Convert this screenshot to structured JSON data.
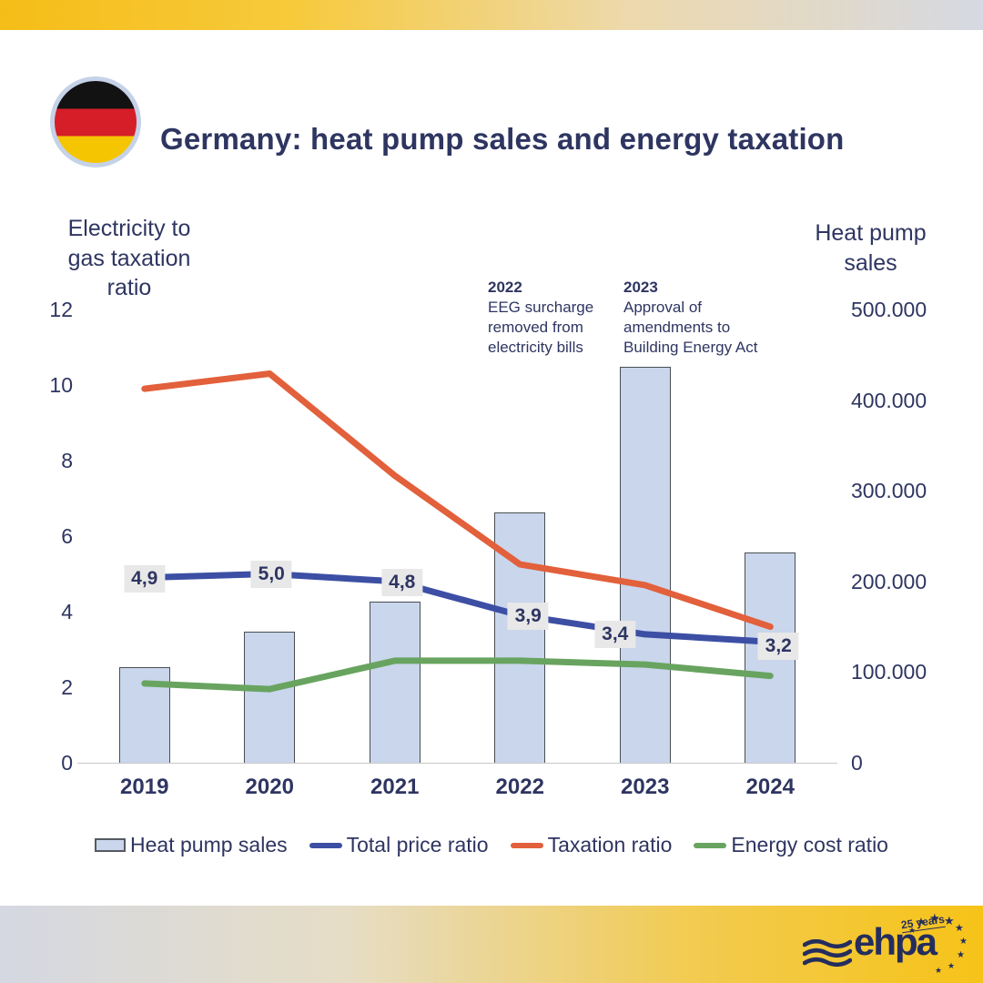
{
  "header": {
    "title": "Germany: heat pump sales and energy taxation",
    "flag": "germany-flag"
  },
  "chart_data": {
    "type": "combo-bar-line",
    "categories": [
      "2019",
      "2020",
      "2021",
      "2022",
      "2023",
      "2024"
    ],
    "bar_series": {
      "name": "Heat pump sales",
      "axis": "right",
      "values": [
        105000,
        145000,
        178000,
        276000,
        437000,
        232000
      ],
      "fill": "#C9D6EC",
      "border": "#4A4E54"
    },
    "line_series": [
      {
        "name": "Total price ratio",
        "color": "#3C4FA4",
        "values": [
          4.9,
          5.0,
          4.8,
          3.9,
          3.4,
          3.2
        ],
        "labels": [
          "4,9",
          "5,0",
          "4,8",
          "3,9",
          "3,4",
          "3,2"
        ]
      },
      {
        "name": "Taxation ratio",
        "color": "#E2603B",
        "values": [
          9.9,
          10.3,
          7.6,
          5.25,
          4.7,
          3.6
        ],
        "labels": []
      },
      {
        "name": "Energy cost ratio",
        "color": "#68A45F",
        "values": [
          2.1,
          1.95,
          2.7,
          2.7,
          2.6,
          2.3
        ],
        "labels": []
      }
    ],
    "left_axis": {
      "title": "Electricity to gas taxation ratio",
      "min": 0,
      "max": 12,
      "ticks": [
        "12",
        "10",
        "8",
        "6",
        "4",
        "2",
        "0"
      ]
    },
    "right_axis": {
      "title": "Heat pump sales",
      "min": 0,
      "max": 500000,
      "ticks": [
        "500.000",
        "400.000",
        "300.000",
        "200.000",
        "100.000",
        "0"
      ]
    },
    "annotations": [
      {
        "year": "2022",
        "text": "EEG surcharge removed from electricity bills"
      },
      {
        "year": "2023",
        "text": "Approval of amendments to Building Energy Act"
      }
    ],
    "grid": false,
    "legend_position": "bottom"
  },
  "legend": {
    "items": [
      {
        "label": "Heat pump sales",
        "type": "bar"
      },
      {
        "label": "Total price ratio",
        "type": "line",
        "color": "#3C4FA4"
      },
      {
        "label": "Taxation ratio",
        "type": "line",
        "color": "#E2603B"
      },
      {
        "label": "Energy cost ratio",
        "type": "line",
        "color": "#68A45F"
      }
    ]
  },
  "footer": {
    "logo_text": "ehpa",
    "logo_badge": "25 years"
  }
}
